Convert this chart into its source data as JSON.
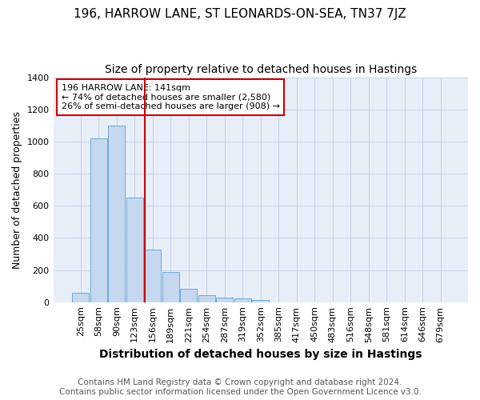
{
  "title": "196, HARROW LANE, ST LEONARDS-ON-SEA, TN37 7JZ",
  "subtitle": "Size of property relative to detached houses in Hastings",
  "xlabel": "Distribution of detached houses by size in Hastings",
  "ylabel": "Number of detached properties",
  "footnote1": "Contains HM Land Registry data © Crown copyright and database right 2024.",
  "footnote2": "Contains public sector information licensed under the Open Government Licence v3.0.",
  "bar_labels": [
    "25sqm",
    "58sqm",
    "90sqm",
    "123sqm",
    "156sqm",
    "189sqm",
    "221sqm",
    "254sqm",
    "287sqm",
    "319sqm",
    "352sqm",
    "385sqm",
    "417sqm",
    "450sqm",
    "483sqm",
    "516sqm",
    "548sqm",
    "581sqm",
    "614sqm",
    "646sqm",
    "679sqm"
  ],
  "bar_values": [
    60,
    1020,
    1100,
    650,
    325,
    190,
    85,
    45,
    28,
    22,
    15,
    0,
    0,
    0,
    0,
    0,
    0,
    0,
    0,
    0,
    0
  ],
  "bar_color": "#c5d8f0",
  "bar_edge_color": "#6aaad4",
  "vline_color": "#cc0000",
  "vline_pos": 3.55,
  "annotation_text": "196 HARROW LANE: 141sqm\n← 74% of detached houses are smaller (2,580)\n26% of semi-detached houses are larger (908) →",
  "annotation_box_color": "#ffffff",
  "annotation_box_edge": "#cc0000",
  "ylim": [
    0,
    1400
  ],
  "yticks": [
    0,
    200,
    400,
    600,
    800,
    1000,
    1200,
    1400
  ],
  "plot_bg_color": "#e8eef8",
  "background_color": "#ffffff",
  "grid_color": "#c8d4e8",
  "title_fontsize": 11,
  "subtitle_fontsize": 10,
  "xlabel_fontsize": 10,
  "ylabel_fontsize": 9,
  "tick_fontsize": 8,
  "footnote_fontsize": 7.5
}
